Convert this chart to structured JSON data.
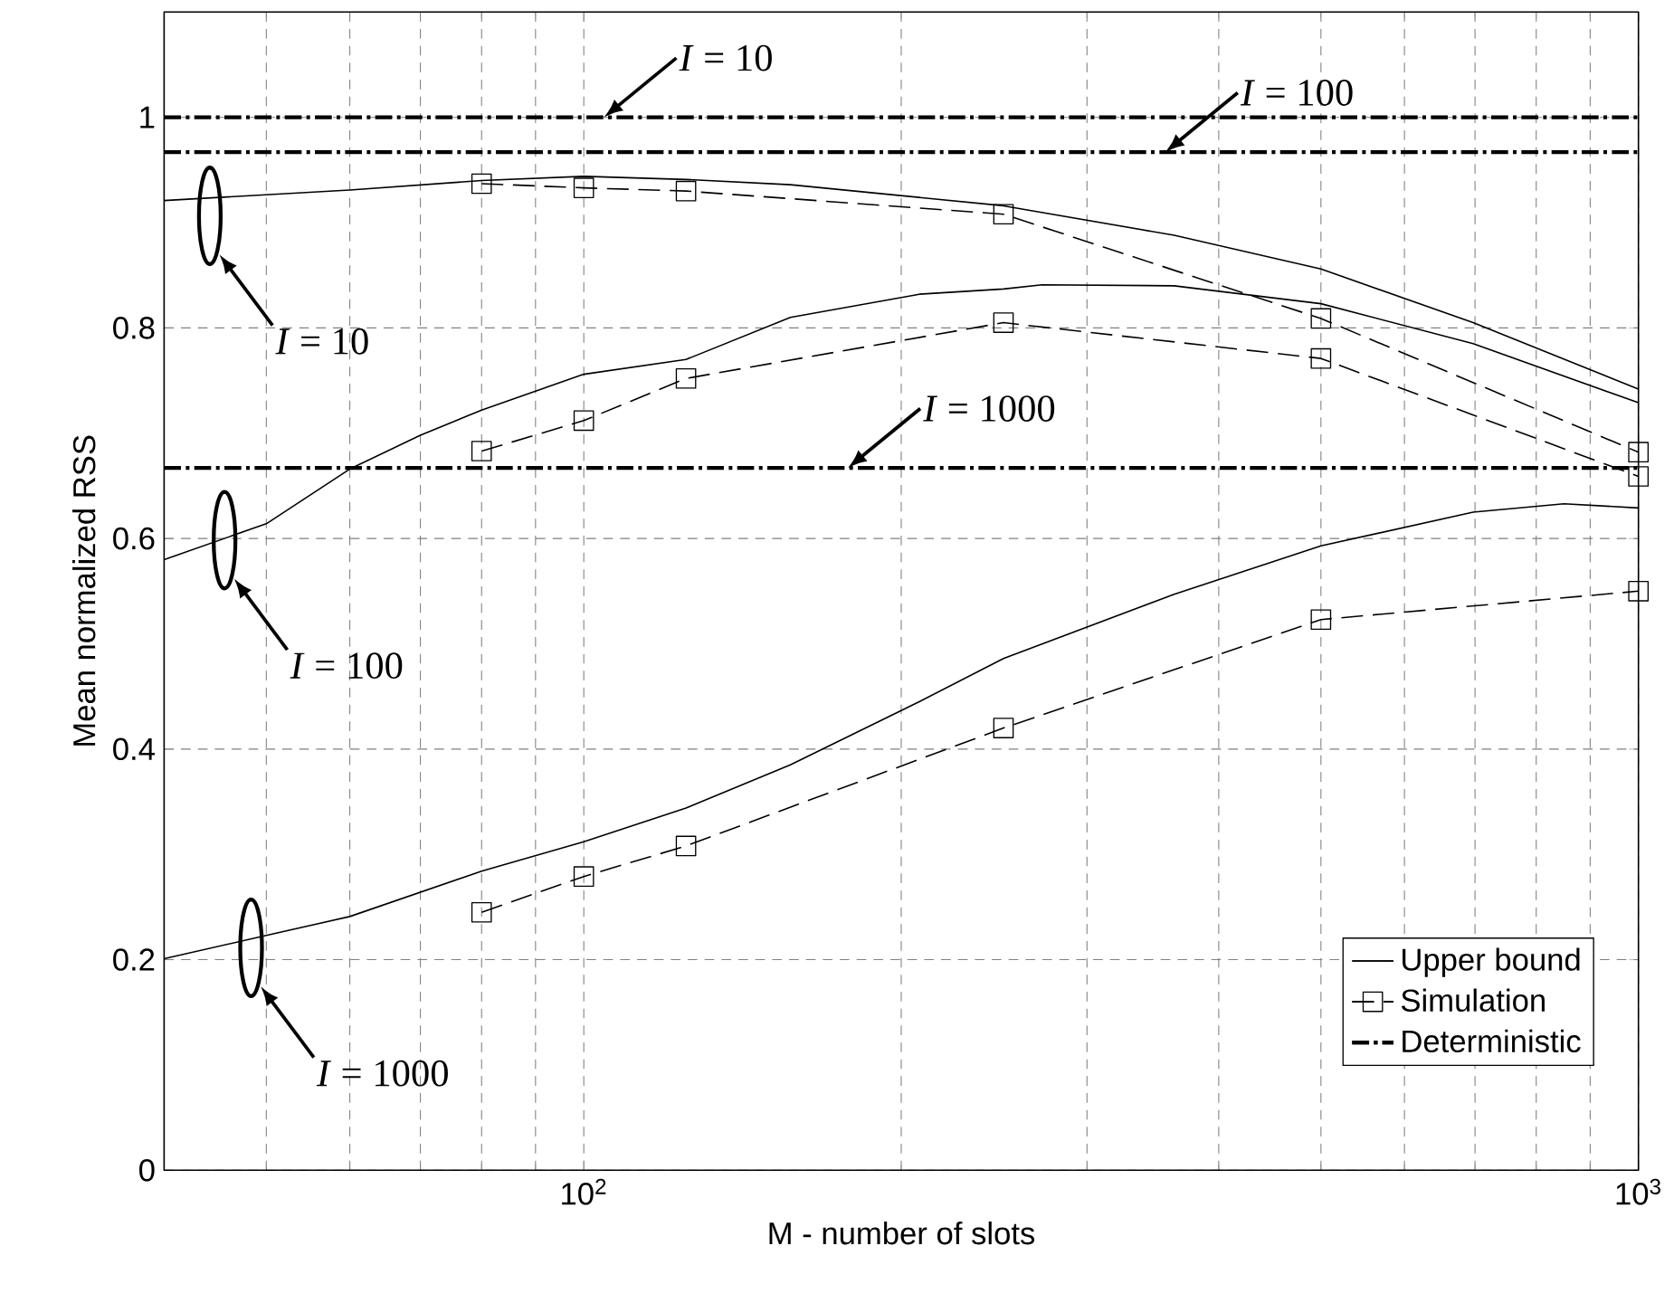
{
  "chart_data": {
    "type": "line",
    "xlabel": "M - number of slots",
    "ylabel": "Mean normalized RSS",
    "log": "x",
    "grid": true,
    "legend": "bottom right",
    "xlim": [
      40,
      1000
    ],
    "ylim": [
      0,
      1.1
    ],
    "xticks": [
      {
        "value": 100,
        "label": "10$^{2}$"
      },
      {
        "value": 1000,
        "label": "10$^{3}$"
      }
    ],
    "yticks": [
      0,
      0.2,
      0.4,
      0.6,
      0.8,
      1
    ],
    "series": [
      {
        "name": "Upper bound",
        "color": "#000000",
        "line_style": "solid",
        "x": [
          40,
          60,
          80,
          100,
          125,
          157,
          250,
          363,
          500,
          697,
          1000
        ],
        "values": [
          0.921,
          0.931,
          0.94,
          0.944,
          0.941,
          0.936,
          0.916,
          0.888,
          0.856,
          0.805,
          0.742
        ]
      },
      {
        "color": "#000000",
        "line_style": "solid",
        "x": [
          40,
          50,
          60,
          70,
          80,
          100,
          125,
          157,
          208,
          250,
          272,
          363,
          500,
          697,
          1000
        ],
        "values": [
          0.58,
          0.614,
          0.666,
          0.698,
          0.722,
          0.756,
          0.77,
          0.81,
          0.832,
          0.837,
          0.841,
          0.84,
          0.823,
          0.785,
          0.729
        ]
      },
      {
        "color": "#000000",
        "line_style": "solid",
        "x": [
          40,
          50,
          60,
          80,
          100,
          125,
          157,
          208,
          250,
          363,
          500,
          697,
          850,
          1000
        ],
        "values": [
          0.201,
          0.223,
          0.241,
          0.284,
          0.312,
          0.344,
          0.385,
          0.445,
          0.486,
          0.547,
          0.593,
          0.625,
          0.633,
          0.629
        ]
      },
      {
        "name": "Simulation",
        "color": "#000000",
        "line_style": "dashed",
        "marker": "square",
        "x": [
          80,
          100,
          125,
          250,
          500,
          1000
        ],
        "values": [
          0.937,
          0.933,
          0.93,
          0.908,
          0.809,
          0.682
        ]
      },
      {
        "color": "#000000",
        "line_style": "dashed",
        "marker": "square",
        "x": [
          80,
          100,
          125,
          250,
          500,
          1000
        ],
        "values": [
          0.683,
          0.712,
          0.752,
          0.805,
          0.771,
          0.659
        ]
      },
      {
        "color": "#000000",
        "line_style": "dashed",
        "marker": "square",
        "x": [
          80,
          100,
          125,
          250,
          500,
          1000
        ],
        "values": [
          0.245,
          0.279,
          0.308,
          0.42,
          0.523,
          0.55
        ]
      },
      {
        "name": "Deterministic",
        "color": "#000000",
        "line_style": "dashdot",
        "x": [
          40,
          1000
        ],
        "values": [
          1,
          1
        ]
      },
      {
        "color": "#000000",
        "line_style": "dashdot",
        "x": [
          40,
          1000
        ],
        "values": [
          0.967,
          0.967
        ]
      },
      {
        "color": "#000000",
        "line_style": "dashdot",
        "x": [
          40,
          1000
        ],
        "values": [
          0.667,
          0.667
        ]
      }
    ],
    "annotations": [
      {
        "text": "*I* = 10",
        "x": 104.5,
        "y": 1.0
      },
      {
        "text": "*I* = 100",
        "x": 356,
        "y": 0.967
      },
      {
        "text": "*I* = 1000",
        "x": 178,
        "y": 0.667
      },
      "*I* = 10",
      "*I* = 100",
      "*I* = 1000"
    ]
  }
}
